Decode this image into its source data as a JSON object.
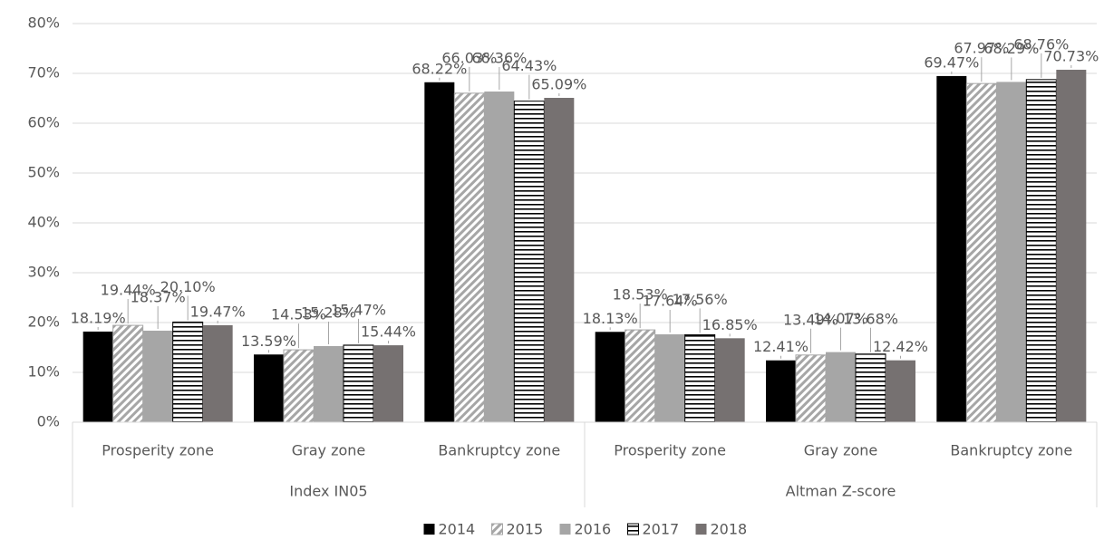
{
  "chart_data": {
    "type": "bar",
    "group_labels": [
      "Index IN05",
      "Altman Z-score"
    ],
    "categories": [
      "Prosperity zone",
      "Gray zone",
      "Bankruptcy zone",
      "Prosperity zone",
      "Gray zone",
      "Bankruptcy zone"
    ],
    "series": [
      {
        "name": "2014",
        "color": "#000000",
        "values": [
          18.19,
          13.59,
          68.22,
          18.13,
          12.41,
          69.47
        ],
        "value_labels": [
          "18.19%",
          "13.59%",
          "68.22%",
          "18.13%",
          "12.41%",
          "69.47%"
        ]
      },
      {
        "name": "2015",
        "color": "#a6a6a6",
        "pattern": "diagonal",
        "values": [
          19.44,
          14.53,
          66.03,
          18.53,
          13.49,
          67.97
        ],
        "value_labels": [
          "19.44%",
          "14.53%",
          "66.03%",
          "18.53%",
          "13.49%",
          "67.97%"
        ]
      },
      {
        "name": "2016",
        "color": "#a6a6a6",
        "values": [
          18.37,
          15.28,
          66.36,
          17.64,
          14.07,
          68.29
        ],
        "value_labels": [
          "18.37%",
          "15.28%",
          "66.36%",
          "17.64%",
          "14.07%",
          "68.29%"
        ]
      },
      {
        "name": "2017",
        "color": "#000000",
        "pattern": "horizontal",
        "values": [
          20.1,
          15.47,
          64.43,
          17.56,
          13.68,
          68.76
        ],
        "value_labels": [
          "20.10%",
          "15.47%",
          "64.43%",
          "17.56%",
          "13.68%",
          "68.76%"
        ]
      },
      {
        "name": "2018",
        "color": "#767171",
        "values": [
          19.47,
          15.44,
          65.09,
          16.85,
          12.42,
          70.73
        ],
        "value_labels": [
          "19.47%",
          "15.44%",
          "65.09%",
          "16.85%",
          "12.42%",
          "70.73%"
        ]
      }
    ],
    "ylim": [
      0,
      80
    ],
    "yticks": [
      {
        "value": 0,
        "label": "0%"
      },
      {
        "value": 10,
        "label": "10%"
      },
      {
        "value": 20,
        "label": "20%"
      },
      {
        "value": 30,
        "label": "30%"
      },
      {
        "value": 40,
        "label": "40%"
      },
      {
        "value": 50,
        "label": "50%"
      },
      {
        "value": 60,
        "label": "60%"
      },
      {
        "value": 70,
        "label": "70%"
      },
      {
        "value": 80,
        "label": "80%"
      }
    ],
    "grid": true,
    "legend": "bottom"
  }
}
